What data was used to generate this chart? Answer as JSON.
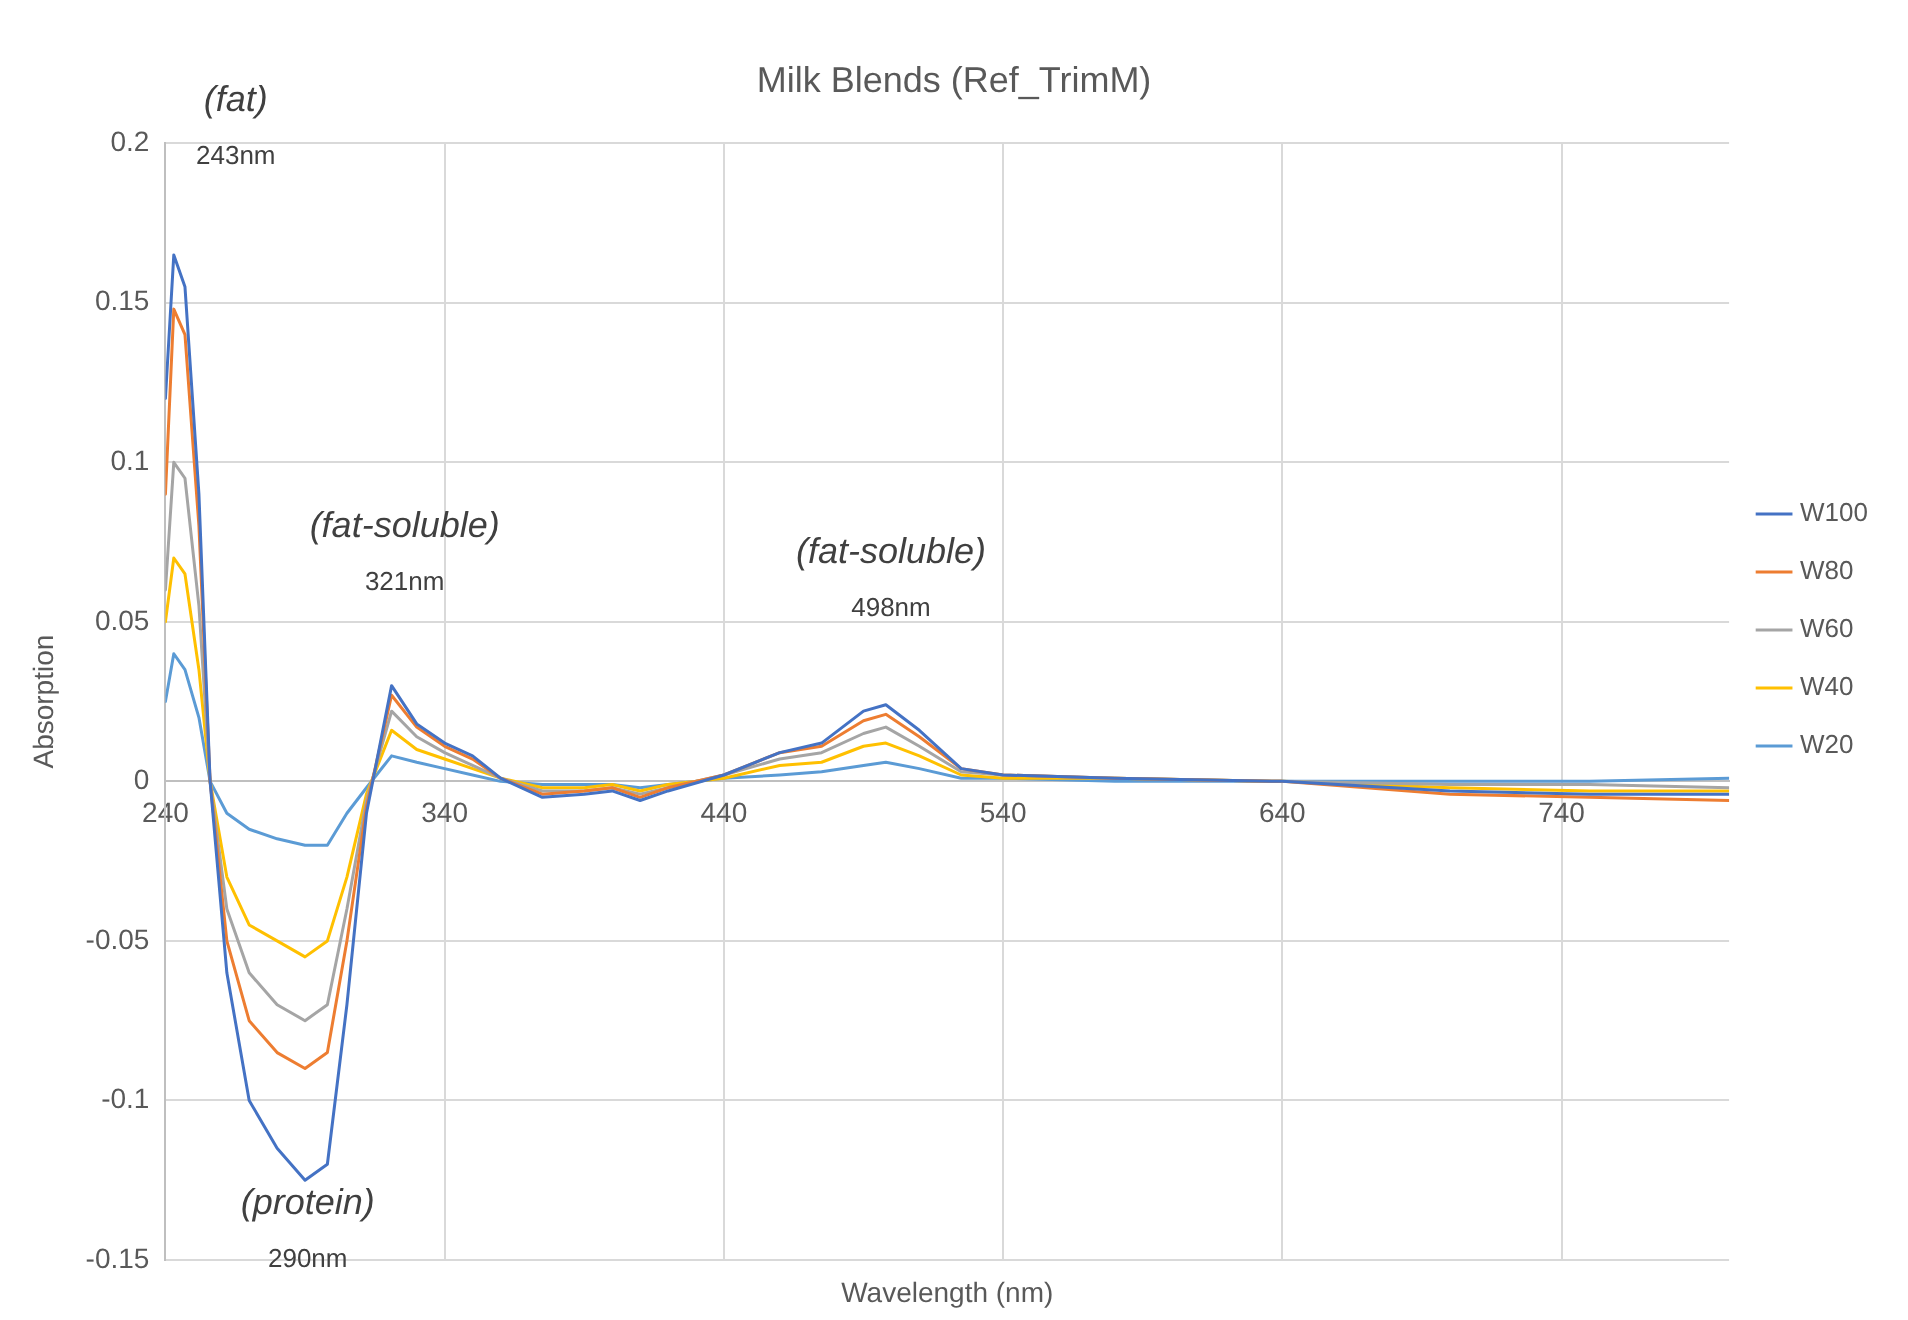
{
  "chart_data": {
    "type": "line",
    "title": "Milk Blends (Ref_TrimM)",
    "xlabel": "Wavelength (nm)",
    "ylabel": "Absorption",
    "x": [
      240,
      243,
      247,
      252,
      256,
      262,
      270,
      280,
      290,
      298,
      305,
      312,
      321,
      330,
      340,
      350,
      360,
      375,
      390,
      400,
      410,
      420,
      440,
      460,
      475,
      490,
      498,
      510,
      525,
      540,
      580,
      640,
      700,
      750,
      800
    ],
    "series": [
      {
        "name": "W100",
        "color": "#4472c4",
        "values": [
          0.12,
          0.165,
          0.155,
          0.09,
          0.0,
          -0.06,
          -0.1,
          -0.115,
          -0.125,
          -0.12,
          -0.07,
          -0.01,
          0.03,
          0.018,
          0.012,
          0.008,
          0.001,
          -0.005,
          -0.004,
          -0.003,
          -0.006,
          -0.003,
          0.002,
          0.009,
          0.012,
          0.022,
          0.024,
          0.016,
          0.004,
          0.002,
          0.001,
          0,
          -0.003,
          -0.004,
          -0.004
        ]
      },
      {
        "name": "W80",
        "color": "#ed7d31",
        "values": [
          0.09,
          0.148,
          0.14,
          0.08,
          0.0,
          -0.05,
          -0.075,
          -0.085,
          -0.09,
          -0.085,
          -0.05,
          -0.008,
          0.027,
          0.017,
          0.011,
          0.007,
          0.001,
          -0.004,
          -0.003,
          -0.002,
          -0.005,
          -0.002,
          0.002,
          0.009,
          0.011,
          0.019,
          0.021,
          0.014,
          0.004,
          0.002,
          0.001,
          0,
          -0.004,
          -0.005,
          -0.006
        ]
      },
      {
        "name": "W60",
        "color": "#a5a5a5",
        "values": [
          0.06,
          0.1,
          0.095,
          0.055,
          0.0,
          -0.04,
          -0.06,
          -0.07,
          -0.075,
          -0.07,
          -0.04,
          -0.006,
          0.022,
          0.014,
          0.009,
          0.005,
          0.001,
          -0.003,
          -0.003,
          -0.002,
          -0.004,
          -0.002,
          0.002,
          0.007,
          0.009,
          0.015,
          0.017,
          0.011,
          0.003,
          0.002,
          0.001,
          0,
          -0.001,
          -0.001,
          -0.002
        ]
      },
      {
        "name": "W40",
        "color": "#ffc000",
        "values": [
          0.05,
          0.07,
          0.065,
          0.035,
          0.0,
          -0.03,
          -0.045,
          -0.05,
          -0.055,
          -0.05,
          -0.03,
          -0.004,
          0.016,
          0.01,
          0.007,
          0.004,
          0.001,
          -0.002,
          -0.002,
          -0.001,
          -0.003,
          -0.001,
          0.001,
          0.005,
          0.006,
          0.011,
          0.012,
          0.008,
          0.002,
          0.001,
          0.001,
          0,
          -0.002,
          -0.003,
          -0.003
        ]
      },
      {
        "name": "W20",
        "color": "#5b9bd5",
        "values": [
          0.025,
          0.04,
          0.035,
          0.02,
          0.0,
          -0.01,
          -0.015,
          -0.018,
          -0.02,
          -0.02,
          -0.01,
          -0.002,
          0.008,
          0.006,
          0.004,
          0.002,
          0.0,
          -0.001,
          -0.001,
          -0.001,
          -0.002,
          -0.001,
          0.001,
          0.002,
          0.003,
          0.005,
          0.006,
          0.004,
          0.001,
          0.001,
          0,
          0,
          0,
          0,
          0.001
        ]
      }
    ],
    "xlim": [
      240,
      800
    ],
    "xticks": [
      240,
      340,
      440,
      540,
      640,
      740
    ],
    "ylim": [
      -0.15,
      0.2
    ],
    "yticks": [
      -0.15,
      -0.1,
      -0.05,
      0,
      0.05,
      0.1,
      0.15,
      0.2
    ],
    "grid": true,
    "legend": "right",
    "marker": "none",
    "line_style": "solid",
    "annotations": [
      "(fat)\n243nm",
      "(fat-soluble)\n321nm",
      "(protein)\n290nm",
      "(fat-soluble)\n498nm"
    ]
  }
}
